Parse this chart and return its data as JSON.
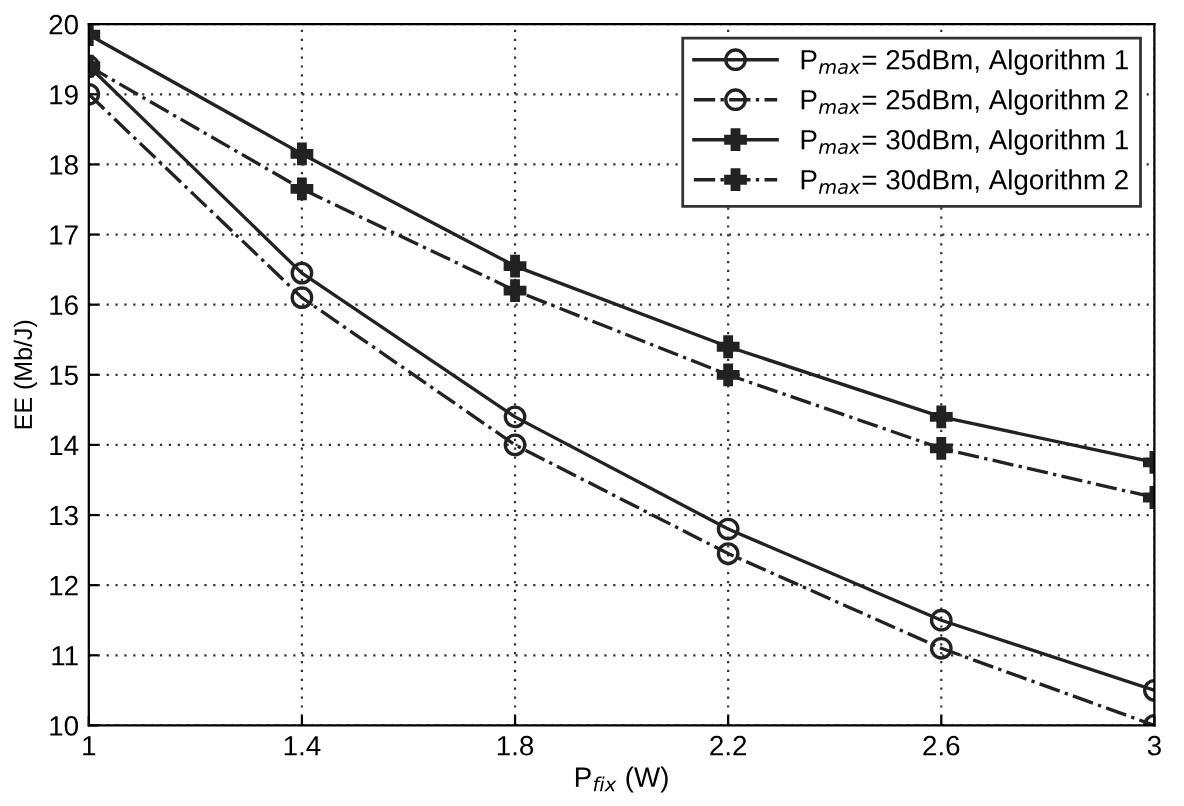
{
  "chart_data": {
    "type": "line",
    "xlabel": "P$_{fix}$ (W)",
    "ylabel": "EE (Mb/J)",
    "x": [
      1,
      1.4,
      1.8,
      2.2,
      2.6,
      3
    ],
    "series": [
      {
        "name": "P$_{max}$= 25dBm, Algorithm 1",
        "color": "#222222",
        "marker": "circle",
        "line_style": "solid",
        "values": [
          19.4,
          16.45,
          14.4,
          12.8,
          11.5,
          10.5
        ]
      },
      {
        "name": "P$_{max}$= 25dBm, Algorithm 2",
        "color": "#222222",
        "marker": "circle",
        "line_style": "dashdot",
        "values": [
          19.0,
          16.1,
          14.0,
          12.45,
          11.1,
          10.0
        ]
      },
      {
        "name": "P$_{max}$= 30dBm, Algorithm 1",
        "color": "#222222",
        "marker": "cross",
        "line_style": "solid",
        "values": [
          19.85,
          18.15,
          16.55,
          15.4,
          14.4,
          13.75
        ]
      },
      {
        "name": "P$_{max}$= 30dBm, Algorithm 2",
        "color": "#222222",
        "marker": "cross",
        "line_style": "dashdot",
        "values": [
          19.4,
          17.65,
          16.2,
          15.0,
          13.95,
          13.25
        ]
      }
    ],
    "xlim": [
      1,
      3
    ],
    "xticks": [
      1,
      1.4,
      1.8,
      2.2,
      2.6,
      3
    ],
    "ylim": [
      10,
      20
    ],
    "yticks": [
      10,
      11,
      12,
      13,
      14,
      15,
      16,
      17,
      18,
      19,
      20
    ],
    "grid": true,
    "legend": "top right"
  }
}
